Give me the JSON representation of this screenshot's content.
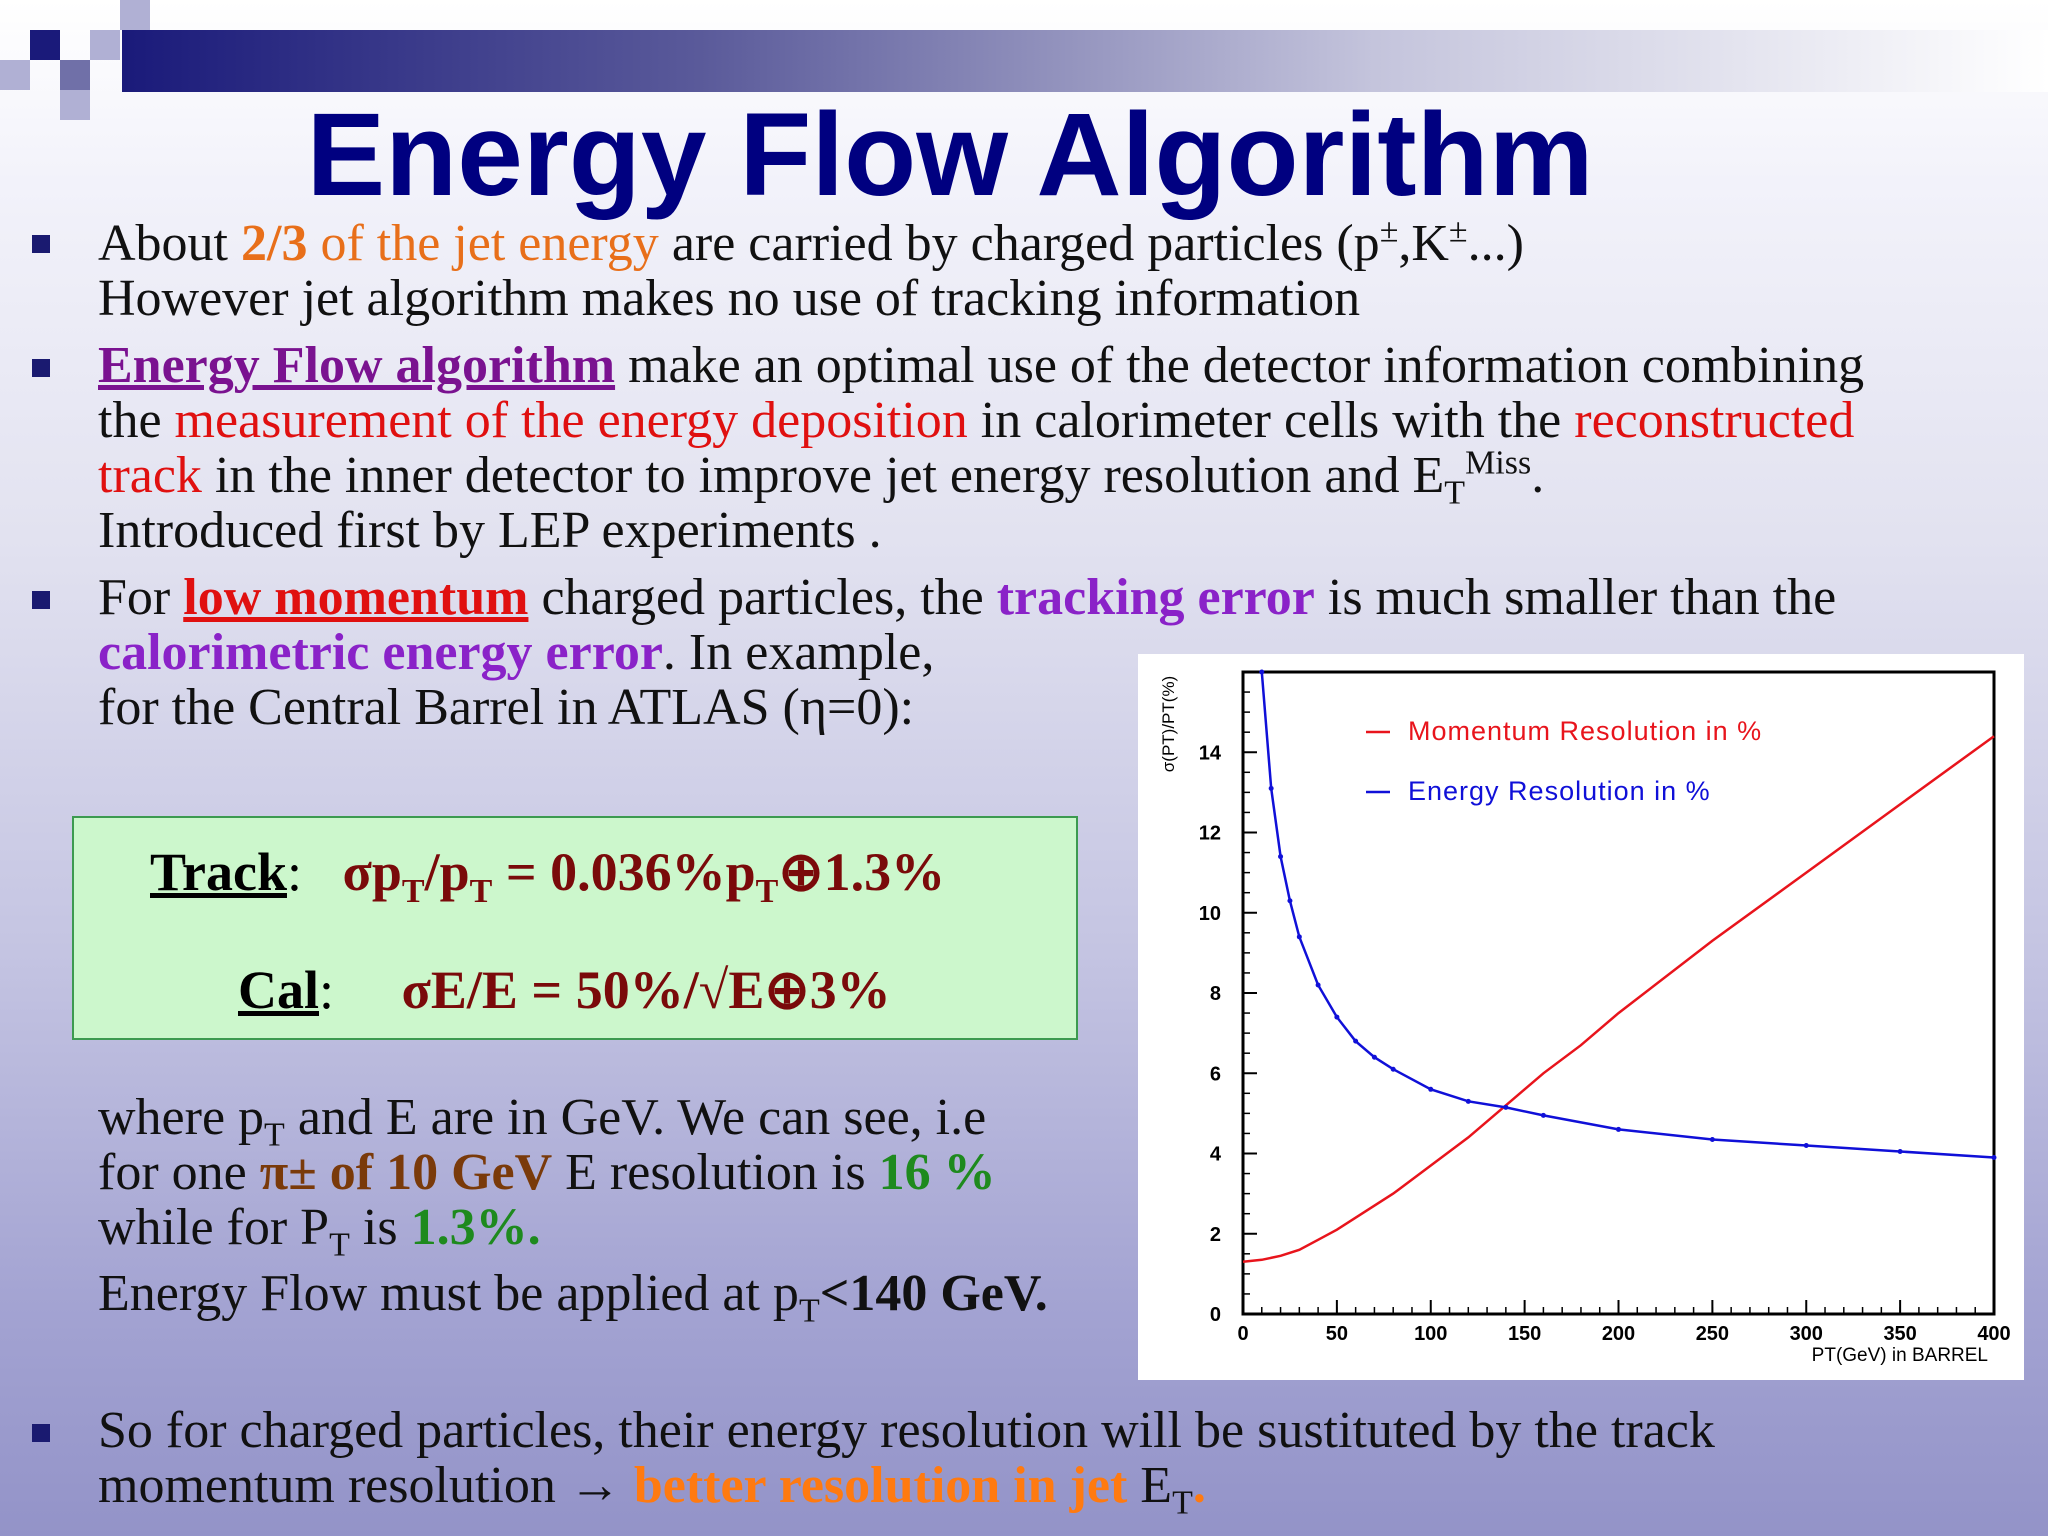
{
  "slide": {
    "title": "Energy Flow Algorithm",
    "bullet1": {
      "line1": {
        "a": "About ",
        "b": "2/3 of the jet energy",
        "c": " are carried by charged particles (p",
        "pm1": "±",
        "d": ",K",
        "pm2": "±",
        "e": "...)"
      },
      "line2": "However jet algorithm makes no use of tracking information"
    },
    "bullet2": {
      "line1": {
        "a": "Energy Flow algorithm",
        "b": " make an optimal use of the detector information combining"
      },
      "line2": {
        "a": "the ",
        "b": "measurement of the energy deposition",
        "c": " in calorimeter cells  with the ",
        "d": "reconstructed"
      },
      "line3": {
        "a": "track",
        "b": " in the inner detector to improve jet energy resolution and E",
        "sub": "T",
        "sup": "Miss",
        "end": "."
      },
      "line4": "Introduced first by LEP experiments ."
    },
    "bullet3": {
      "line1": {
        "a": "For ",
        "b": "low momentum",
        "c": " charged particles, the ",
        "d": "tracking error",
        "e": " is much smaller than the"
      },
      "line2": {
        "a": "calorimetric energy error",
        "b": ".  In example,"
      },
      "line3": "for the Central Barrel in ATLAS (η=0):"
    },
    "formulas": {
      "track_label": "Track",
      "track_colon": ":",
      "track_a": "σp",
      "track_sub1": "T",
      "track_b": "/p",
      "track_sub2": "T",
      "track_c": " =  0.036%p",
      "track_sub3": "T",
      "track_d": "⊕1.3%",
      "cal_label": "Cal",
      "cal_colon": ":",
      "cal_expr": "σE/E = 50%/√E⊕3%"
    },
    "explanation": {
      "line1": {
        "a": "where p",
        "sub": "T",
        "b": " and E are in GeV. We can see, i.e"
      },
      "line2": {
        "a": "for one ",
        "b": "π± of 10 GeV",
        "c": " E resolution is ",
        "d": "16 %"
      },
      "line3": {
        "a": "while for P",
        "sub": "T",
        "b": "  is ",
        "c": "1.3%."
      },
      "line4": {
        "a": "Energy Flow must be applied at p",
        "sub": "T",
        "b": "<140 GeV."
      }
    },
    "bullet4": {
      "line1": "So for charged particles, their energy resolution will be sustituted by the track",
      "line2": {
        "a": "momentum resolution ",
        "arrow": "→",
        "b": " better resolution in jet",
        "c": " E",
        "sub": "T",
        "end": "."
      }
    }
  },
  "chart_data": {
    "type": "line",
    "title": "",
    "xlabel": "PT(GeV) in BARREL",
    "ylabel": "σ(PT)/PT(%)",
    "xlim": [
      0,
      400
    ],
    "ylim": [
      0,
      16
    ],
    "xticks": [
      "0",
      "50",
      "100",
      "150",
      "200",
      "250",
      "300",
      "350",
      "400"
    ],
    "yticks": [
      "0",
      "2",
      "4",
      "6",
      "8",
      "10",
      "12",
      "14"
    ],
    "legend_position": "top-right",
    "series": [
      {
        "name": "Momentum Resolution in %",
        "color": "#e8141c",
        "x": [
          0,
          10,
          20,
          30,
          40,
          50,
          60,
          80,
          100,
          120,
          140,
          160,
          180,
          200,
          250,
          300,
          350,
          400
        ],
        "y": [
          1.3,
          1.35,
          1.45,
          1.6,
          1.85,
          2.1,
          2.4,
          3.0,
          3.7,
          4.4,
          5.2,
          6.0,
          6.7,
          7.5,
          9.3,
          11.0,
          12.7,
          14.4
        ]
      },
      {
        "name": "Energy Resolution in %",
        "color": "#1010d8",
        "x": [
          10,
          15,
          20,
          25,
          30,
          40,
          50,
          60,
          70,
          80,
          100,
          120,
          140,
          160,
          200,
          250,
          300,
          350,
          400
        ],
        "y": [
          16.0,
          13.1,
          11.4,
          10.3,
          9.4,
          8.2,
          7.4,
          6.8,
          6.4,
          6.1,
          5.6,
          5.3,
          5.15,
          4.95,
          4.6,
          4.35,
          4.2,
          4.05,
          3.9
        ]
      }
    ]
  }
}
